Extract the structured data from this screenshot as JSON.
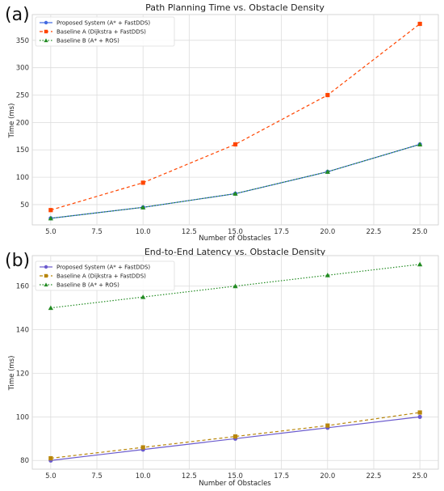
{
  "panels": [
    {
      "letter": "(a)"
    },
    {
      "letter": "(b)"
    }
  ],
  "chart_data": [
    {
      "type": "line",
      "title": "Path Planning Time vs. Obstacle Density",
      "xlabel": "Number of Obstacles",
      "ylabel": "Time (ms)",
      "x": [
        5,
        10,
        15,
        20,
        25
      ],
      "xlim": [
        4.0,
        26.0
      ],
      "ylim": [
        13,
        397
      ],
      "xticks": [
        "5.0",
        "7.5",
        "10.0",
        "12.5",
        "15.0",
        "17.5",
        "20.0",
        "22.5",
        "25.0"
      ],
      "xtick_values": [
        5,
        7.5,
        10,
        12.5,
        15,
        17.5,
        20,
        22.5,
        25
      ],
      "yticks": [
        "50",
        "100",
        "150",
        "200",
        "250",
        "300",
        "350"
      ],
      "ytick_values": [
        50,
        100,
        150,
        200,
        250,
        300,
        350
      ],
      "grid": true,
      "legend": "top-left",
      "series": [
        {
          "name": "Proposed System (A* + FastDDS)",
          "values": [
            25,
            45,
            70,
            110,
            160
          ],
          "color": "#4169e1",
          "dash": "",
          "marker": "circle"
        },
        {
          "name": "Baseline A (Dijkstra + FastDDS)",
          "values": [
            40,
            90,
            160,
            250,
            380
          ],
          "color": "#ff4500",
          "dash": "4,3",
          "marker": "square"
        },
        {
          "name": "Baseline B (A* + ROS)",
          "values": [
            25,
            45,
            70,
            110,
            160
          ],
          "color": "#228b22",
          "dash": "1.5,2",
          "marker": "triangle"
        }
      ]
    },
    {
      "type": "line",
      "title": "End-to-End Latency vs. Obstacle Density",
      "xlabel": "Number of Obstacles",
      "ylabel": "Time (ms)",
      "x": [
        5,
        10,
        15,
        20,
        25
      ],
      "xlim": [
        4.0,
        26.0
      ],
      "ylim": [
        76,
        174
      ],
      "xticks": [
        "5.0",
        "7.5",
        "10.0",
        "12.5",
        "15.0",
        "17.5",
        "20.0",
        "22.5",
        "25.0"
      ],
      "xtick_values": [
        5,
        7.5,
        10,
        12.5,
        15,
        17.5,
        20,
        22.5,
        25
      ],
      "yticks": [
        "80",
        "100",
        "120",
        "140",
        "160"
      ],
      "ytick_values": [
        80,
        100,
        120,
        140,
        160
      ],
      "grid": true,
      "legend": "top-left",
      "series": [
        {
          "name": "Proposed System (A* + FastDDS)",
          "values": [
            80,
            85,
            90,
            95,
            100
          ],
          "color": "#6a5acd",
          "dash": "",
          "marker": "circle"
        },
        {
          "name": "Baseline A (Dijkstra + FastDDS)",
          "values": [
            81,
            86,
            91,
            96,
            102
          ],
          "color": "#b8860b",
          "dash": "4,3",
          "marker": "square"
        },
        {
          "name": "Baseline B (A* + ROS)",
          "values": [
            150,
            155,
            160,
            165,
            170
          ],
          "color": "#228b22",
          "dash": "1.5,2",
          "marker": "triangle"
        }
      ]
    }
  ]
}
